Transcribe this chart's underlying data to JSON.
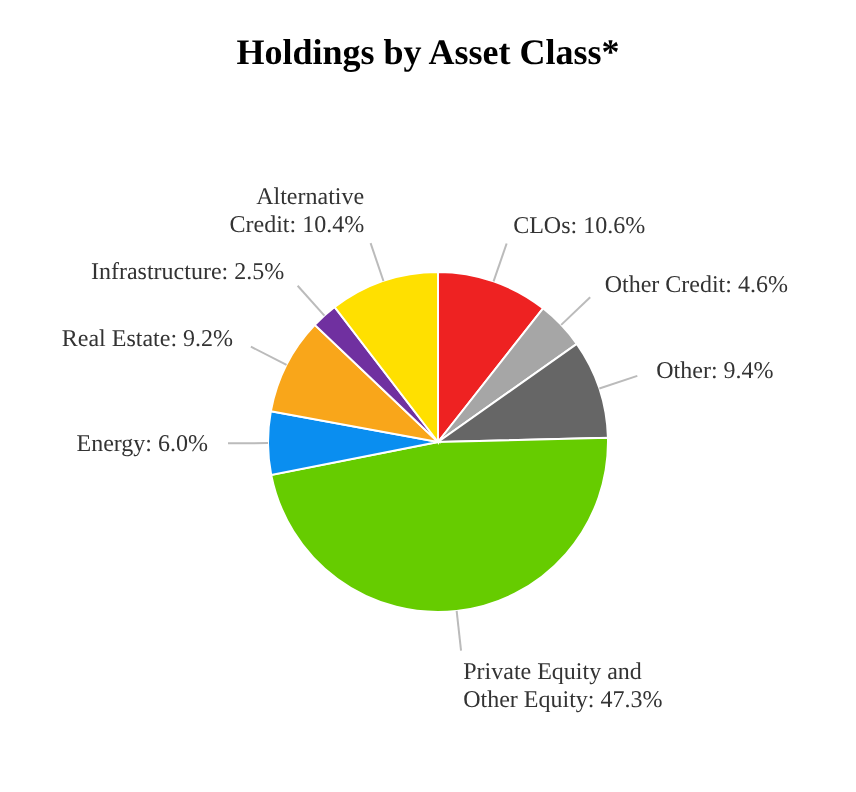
{
  "chart_data": {
    "type": "pie",
    "title": "Holdings by Asset Class*",
    "categories": [
      "CLOs",
      "Other Credit",
      "Other",
      "Private Equity and Other Equity",
      "Energy",
      "Real Estate",
      "Infrastructure",
      "Alternative Credit"
    ],
    "values": [
      10.6,
      4.6,
      9.4,
      47.3,
      6.0,
      9.2,
      2.5,
      10.4
    ],
    "value_labels": [
      "10.6%",
      "4.6%",
      "9.4%",
      "47.3%",
      "6.0%",
      "9.2%",
      "2.5%",
      "10.4%"
    ],
    "colors": [
      "#ee2222",
      "#a6a6a6",
      "#666666",
      "#66cc00",
      "#0a8ef0",
      "#f9a61a",
      "#7030a0",
      "#ffe000"
    ],
    "legend": false
  }
}
